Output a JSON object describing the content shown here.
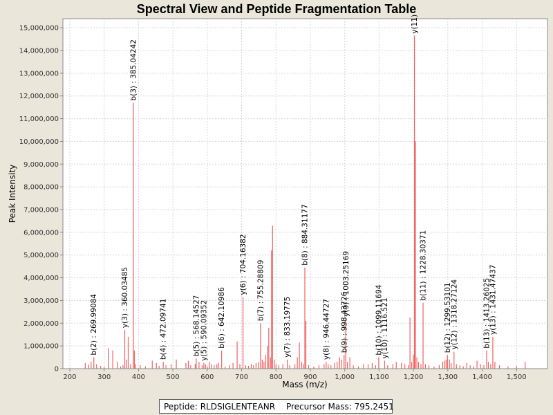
{
  "chart_data": {
    "type": "spectrum",
    "title": "Spectral View and Peptide Fragmentation Table",
    "xlabel": "Mass (m/z)",
    "ylabel": "Peak Intensity",
    "xlim": [
      180,
      1590
    ],
    "ylim": [
      0,
      15400000
    ],
    "xticks": [
      200,
      300,
      400,
      500,
      600,
      700,
      800,
      900,
      1000,
      1100,
      1200,
      1300,
      1400,
      1500
    ],
    "xtick_labels": [
      "200",
      "300",
      "400",
      "500",
      "600",
      "700",
      "800",
      "900",
      "1,000",
      "1,100",
      "1,200",
      "1,300",
      "1,400",
      "1,500"
    ],
    "yticks": [
      0,
      1000000,
      2000000,
      3000000,
      4000000,
      5000000,
      6000000,
      7000000,
      8000000,
      9000000,
      10000000,
      11000000,
      12000000,
      13000000,
      14000000,
      15000000
    ],
    "ytick_labels": [
      "0",
      "1,000,000",
      "2,000,000",
      "3,000,000",
      "4,000,000",
      "5,000,000",
      "6,000,000",
      "7,000,000",
      "8,000,000",
      "9,000,000",
      "10,000,000",
      "11,000,000",
      "12,000,000",
      "13,000,000",
      "14,000,000",
      "15,000,000"
    ],
    "grid": true,
    "peak_color": "#f06060",
    "peaks": [
      {
        "x": 245,
        "y": 250000
      },
      {
        "x": 255,
        "y": 180000
      },
      {
        "x": 262,
        "y": 300000
      },
      {
        "x": 270,
        "y": 500000
      },
      {
        "x": 278,
        "y": 200000
      },
      {
        "x": 290,
        "y": 120000
      },
      {
        "x": 300,
        "y": 80000
      },
      {
        "x": 312,
        "y": 900000
      },
      {
        "x": 325,
        "y": 800000
      },
      {
        "x": 338,
        "y": 300000
      },
      {
        "x": 348,
        "y": 100000
      },
      {
        "x": 355,
        "y": 150000
      },
      {
        "x": 360,
        "y": 1700000
      },
      {
        "x": 365,
        "y": 400000
      },
      {
        "x": 370,
        "y": 1400000
      },
      {
        "x": 377,
        "y": 200000
      },
      {
        "x": 385,
        "y": 11700000
      },
      {
        "x": 388,
        "y": 800000
      },
      {
        "x": 392,
        "y": 200000
      },
      {
        "x": 405,
        "y": 150000
      },
      {
        "x": 420,
        "y": 100000
      },
      {
        "x": 440,
        "y": 350000
      },
      {
        "x": 452,
        "y": 250000
      },
      {
        "x": 460,
        "y": 120000
      },
      {
        "x": 472,
        "y": 300000
      },
      {
        "x": 480,
        "y": 150000
      },
      {
        "x": 495,
        "y": 200000
      },
      {
        "x": 510,
        "y": 400000
      },
      {
        "x": 538,
        "y": 250000
      },
      {
        "x": 545,
        "y": 350000
      },
      {
        "x": 552,
        "y": 150000
      },
      {
        "x": 565,
        "y": 200000
      },
      {
        "x": 568,
        "y": 450000
      },
      {
        "x": 576,
        "y": 300000
      },
      {
        "x": 585,
        "y": 150000
      },
      {
        "x": 590,
        "y": 250000
      },
      {
        "x": 595,
        "y": 200000
      },
      {
        "x": 600,
        "y": 100000
      },
      {
        "x": 606,
        "y": 300000
      },
      {
        "x": 612,
        "y": 200000
      },
      {
        "x": 620,
        "y": 150000
      },
      {
        "x": 628,
        "y": 200000
      },
      {
        "x": 633,
        "y": 250000
      },
      {
        "x": 642,
        "y": 800000
      },
      {
        "x": 652,
        "y": 100000
      },
      {
        "x": 665,
        "y": 150000
      },
      {
        "x": 675,
        "y": 250000
      },
      {
        "x": 687,
        "y": 1200000
      },
      {
        "x": 695,
        "y": 200000
      },
      {
        "x": 704,
        "y": 3150000
      },
      {
        "x": 712,
        "y": 150000
      },
      {
        "x": 720,
        "y": 120000
      },
      {
        "x": 728,
        "y": 200000
      },
      {
        "x": 735,
        "y": 150000
      },
      {
        "x": 742,
        "y": 250000
      },
      {
        "x": 750,
        "y": 300000
      },
      {
        "x": 755,
        "y": 2000000
      },
      {
        "x": 760,
        "y": 400000
      },
      {
        "x": 765,
        "y": 300000
      },
      {
        "x": 770,
        "y": 600000
      },
      {
        "x": 775,
        "y": 1000000
      },
      {
        "x": 779,
        "y": 1800000
      },
      {
        "x": 784,
        "y": 500000
      },
      {
        "x": 787,
        "y": 5200000
      },
      {
        "x": 790,
        "y": 6300000
      },
      {
        "x": 795,
        "y": 400000
      },
      {
        "x": 800,
        "y": 200000
      },
      {
        "x": 808,
        "y": 150000
      },
      {
        "x": 820,
        "y": 200000
      },
      {
        "x": 833,
        "y": 400000
      },
      {
        "x": 840,
        "y": 150000
      },
      {
        "x": 855,
        "y": 200000
      },
      {
        "x": 862,
        "y": 500000
      },
      {
        "x": 868,
        "y": 1150000
      },
      {
        "x": 875,
        "y": 300000
      },
      {
        "x": 880,
        "y": 200000
      },
      {
        "x": 884,
        "y": 4450000
      },
      {
        "x": 887,
        "y": 2100000
      },
      {
        "x": 895,
        "y": 150000
      },
      {
        "x": 910,
        "y": 100000
      },
      {
        "x": 925,
        "y": 150000
      },
      {
        "x": 940,
        "y": 200000
      },
      {
        "x": 946,
        "y": 300000
      },
      {
        "x": 952,
        "y": 200000
      },
      {
        "x": 960,
        "y": 150000
      },
      {
        "x": 970,
        "y": 250000
      },
      {
        "x": 978,
        "y": 300000
      },
      {
        "x": 985,
        "y": 500000
      },
      {
        "x": 990,
        "y": 400000
      },
      {
        "x": 998,
        "y": 600000
      },
      {
        "x": 1003,
        "y": 2200000
      },
      {
        "x": 1008,
        "y": 300000
      },
      {
        "x": 1015,
        "y": 500000
      },
      {
        "x": 1025,
        "y": 150000
      },
      {
        "x": 1040,
        "y": 100000
      },
      {
        "x": 1055,
        "y": 200000
      },
      {
        "x": 1068,
        "y": 200000
      },
      {
        "x": 1080,
        "y": 250000
      },
      {
        "x": 1090,
        "y": 150000
      },
      {
        "x": 1099,
        "y": 500000
      },
      {
        "x": 1116,
        "y": 350000
      },
      {
        "x": 1125,
        "y": 150000
      },
      {
        "x": 1140,
        "y": 200000
      },
      {
        "x": 1150,
        "y": 300000
      },
      {
        "x": 1165,
        "y": 250000
      },
      {
        "x": 1175,
        "y": 200000
      },
      {
        "x": 1185,
        "y": 150000
      },
      {
        "x": 1190,
        "y": 2250000
      },
      {
        "x": 1195,
        "y": 300000
      },
      {
        "x": 1200,
        "y": 600000
      },
      {
        "x": 1203,
        "y": 14650000
      },
      {
        "x": 1206,
        "y": 10000000
      },
      {
        "x": 1210,
        "y": 500000
      },
      {
        "x": 1215,
        "y": 300000
      },
      {
        "x": 1222,
        "y": 200000
      },
      {
        "x": 1228,
        "y": 2900000
      },
      {
        "x": 1235,
        "y": 200000
      },
      {
        "x": 1245,
        "y": 150000
      },
      {
        "x": 1260,
        "y": 100000
      },
      {
        "x": 1275,
        "y": 150000
      },
      {
        "x": 1285,
        "y": 300000
      },
      {
        "x": 1290,
        "y": 350000
      },
      {
        "x": 1295,
        "y": 400000
      },
      {
        "x": 1299,
        "y": 600000
      },
      {
        "x": 1305,
        "y": 400000
      },
      {
        "x": 1310,
        "y": 250000
      },
      {
        "x": 1318,
        "y": 750000
      },
      {
        "x": 1325,
        "y": 200000
      },
      {
        "x": 1335,
        "y": 150000
      },
      {
        "x": 1345,
        "y": 100000
      },
      {
        "x": 1355,
        "y": 250000
      },
      {
        "x": 1365,
        "y": 150000
      },
      {
        "x": 1375,
        "y": 100000
      },
      {
        "x": 1385,
        "y": 350000
      },
      {
        "x": 1395,
        "y": 200000
      },
      {
        "x": 1405,
        "y": 150000
      },
      {
        "x": 1413,
        "y": 800000
      },
      {
        "x": 1418,
        "y": 300000
      },
      {
        "x": 1425,
        "y": 200000
      },
      {
        "x": 1431,
        "y": 1400000
      },
      {
        "x": 1437,
        "y": 300000
      },
      {
        "x": 1450,
        "y": 150000
      },
      {
        "x": 1475,
        "y": 100000
      },
      {
        "x": 1500,
        "y": 120000
      },
      {
        "x": 1525,
        "y": 300000
      }
    ],
    "annotations": [
      {
        "label": "b(2) : 269.99084",
        "x": 269.99,
        "y": 500000
      },
      {
        "label": "y(3) : 360.03485",
        "x": 360.03,
        "y": 1700000
      },
      {
        "label": "b(3) : 385.04242",
        "x": 385.04,
        "y": 11700000
      },
      {
        "label": "b(4) : 472.09741",
        "x": 472.1,
        "y": 300000
      },
      {
        "label": "b(5) : 568.14527",
        "x": 568.15,
        "y": 450000
      },
      {
        "label": "y(5) : 590.09352",
        "x": 590.09,
        "y": 250000
      },
      {
        "label": "b(6) : 642.10986",
        "x": 642.11,
        "y": 800000
      },
      {
        "label": "y(6) : 704.16382",
        "x": 704.16,
        "y": 3150000
      },
      {
        "label": "b(7) : 755.28809",
        "x": 755.29,
        "y": 2000000
      },
      {
        "label": "y(7) : 833.19775",
        "x": 833.2,
        "y": 400000
      },
      {
        "label": "b(8) : 884.31177",
        "x": 884.31,
        "y": 4450000
      },
      {
        "label": "y(8) : 946.44727",
        "x": 946.45,
        "y": 300000
      },
      {
        "label": "b(9) : 998.43726",
        "x": 998.44,
        "y": 600000
      },
      {
        "label": "y(9) : 1003.25169",
        "x": 1003.25,
        "y": 2200000
      },
      {
        "label": "b(10) : 1099.11694",
        "x": 1099.12,
        "y": 500000
      },
      {
        "label": "y(10) : 1116.521",
        "x": 1116.52,
        "y": 350000
      },
      {
        "label": "y(11)",
        "x": 1203.0,
        "y": 14650000
      },
      {
        "label": "b(11) : 1228.30371",
        "x": 1228.3,
        "y": 2900000
      },
      {
        "label": "b(12) : 1299.53101",
        "x": 1299.53,
        "y": 600000
      },
      {
        "label": "y(12) : 1318.27124",
        "x": 1318.27,
        "y": 750000
      },
      {
        "label": "b(13) : 1413.26025",
        "x": 1413.26,
        "y": 800000
      },
      {
        "label": "y(13) : 1431.47437",
        "x": 1431.47,
        "y": 1400000
      }
    ]
  },
  "footer": {
    "peptide": "Peptide: RLDSIGLENTEANR",
    "precursor": "Precursor Mass: 795.2451"
  }
}
